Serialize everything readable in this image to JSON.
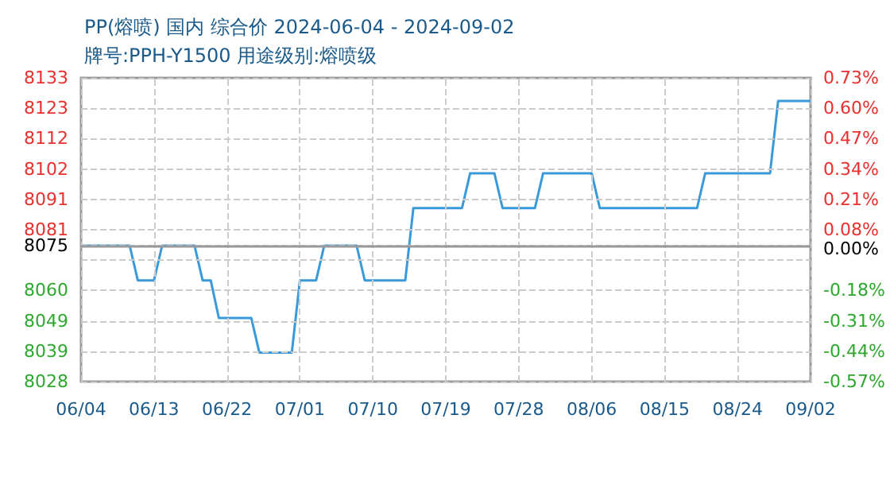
{
  "chart_data": {
    "type": "line",
    "title": "PP(熔喷) 国内 综合价 2024-06-04 - 2024-09-02",
    "subtitle": "牌号:PPH-Y1500 用途级别:熔喷级",
    "x": [
      "2024-06-04",
      "2024-06-10",
      "2024-06-11",
      "2024-06-13",
      "2024-06-14",
      "2024-06-18",
      "2024-06-19",
      "2024-06-20",
      "2024-06-21",
      "2024-06-25",
      "2024-06-26",
      "2024-06-30",
      "2024-07-01",
      "2024-07-03",
      "2024-07-04",
      "2024-07-08",
      "2024-07-09",
      "2024-07-14",
      "2024-07-15",
      "2024-07-21",
      "2024-07-22",
      "2024-07-25",
      "2024-07-26",
      "2024-07-30",
      "2024-07-31",
      "2024-08-06",
      "2024-08-07",
      "2024-08-19",
      "2024-08-20",
      "2024-08-28",
      "2024-08-29",
      "2024-09-02"
    ],
    "series": [
      {
        "color": "#3a9ad9",
        "values": [
          8075,
          8075,
          8063,
          8063,
          8075,
          8075,
          8063,
          8063,
          8050,
          8050,
          8038,
          8038,
          8063,
          8063,
          8075,
          8075,
          8063,
          8063,
          8088,
          8088,
          8100,
          8100,
          8088,
          8088,
          8100,
          8100,
          8088,
          8088,
          8100,
          8100,
          8125,
          8125
        ]
      }
    ],
    "xlim": [
      "2024-06-04",
      "2024-09-02"
    ],
    "xticks": [
      {
        "value": "2024-06-04",
        "label": "06/04"
      },
      {
        "value": "2024-06-13",
        "label": "06/13"
      },
      {
        "value": "2024-06-22",
        "label": "06/22"
      },
      {
        "value": "2024-07-01",
        "label": "07/01"
      },
      {
        "value": "2024-07-10",
        "label": "07/10"
      },
      {
        "value": "2024-07-19",
        "label": "07/19"
      },
      {
        "value": "2024-07-28",
        "label": "07/28"
      },
      {
        "value": "2024-08-06",
        "label": "08/06"
      },
      {
        "value": "2024-08-15",
        "label": "08/15"
      },
      {
        "value": "2024-08-24",
        "label": "08/24"
      },
      {
        "value": "2024-09-02",
        "label": "09/02"
      }
    ],
    "ylim": [
      8028,
      8133
    ],
    "yticks": [
      8028,
      {
        "value": 8038.5,
        "label": "8039"
      },
      8049,
      {
        "value": 8059.5,
        "label": "8060"
      },
      {
        "value": 8070,
        "label": null
      },
      8075,
      {
        "value": 8080.5,
        "label": "8081"
      },
      8091,
      {
        "value": 8101.5,
        "label": "8102"
      },
      8112,
      {
        "value": 8122.5,
        "label": "8123"
      },
      8133
    ],
    "y2lim": [
      -0.57,
      0.73
    ],
    "y2ticks": [
      {
        "value": -0.57,
        "label": "-0.57%"
      },
      {
        "value": -0.44,
        "label": "-0.44%"
      },
      {
        "value": -0.31,
        "label": "-0.31%"
      },
      {
        "value": -0.18,
        "label": "-0.18%"
      },
      {
        "value": -0.05,
        "label": null
      },
      {
        "value": 0,
        "label": "0.00%"
      },
      {
        "value": 0.08,
        "label": "0.08%"
      },
      {
        "value": 0.21,
        "label": "0.21%"
      },
      {
        "value": 0.34,
        "label": "0.34%"
      },
      {
        "value": 0.47,
        "label": "0.47%"
      },
      {
        "value": 0.6,
        "label": "0.60%"
      },
      {
        "value": 0.73,
        "label": "0.73%"
      }
    ],
    "ref_lines": [
      {
        "axis": "y",
        "value": 8075,
        "color": "#999999"
      }
    ],
    "grid": true,
    "marker": "none",
    "line_style": "solid"
  }
}
